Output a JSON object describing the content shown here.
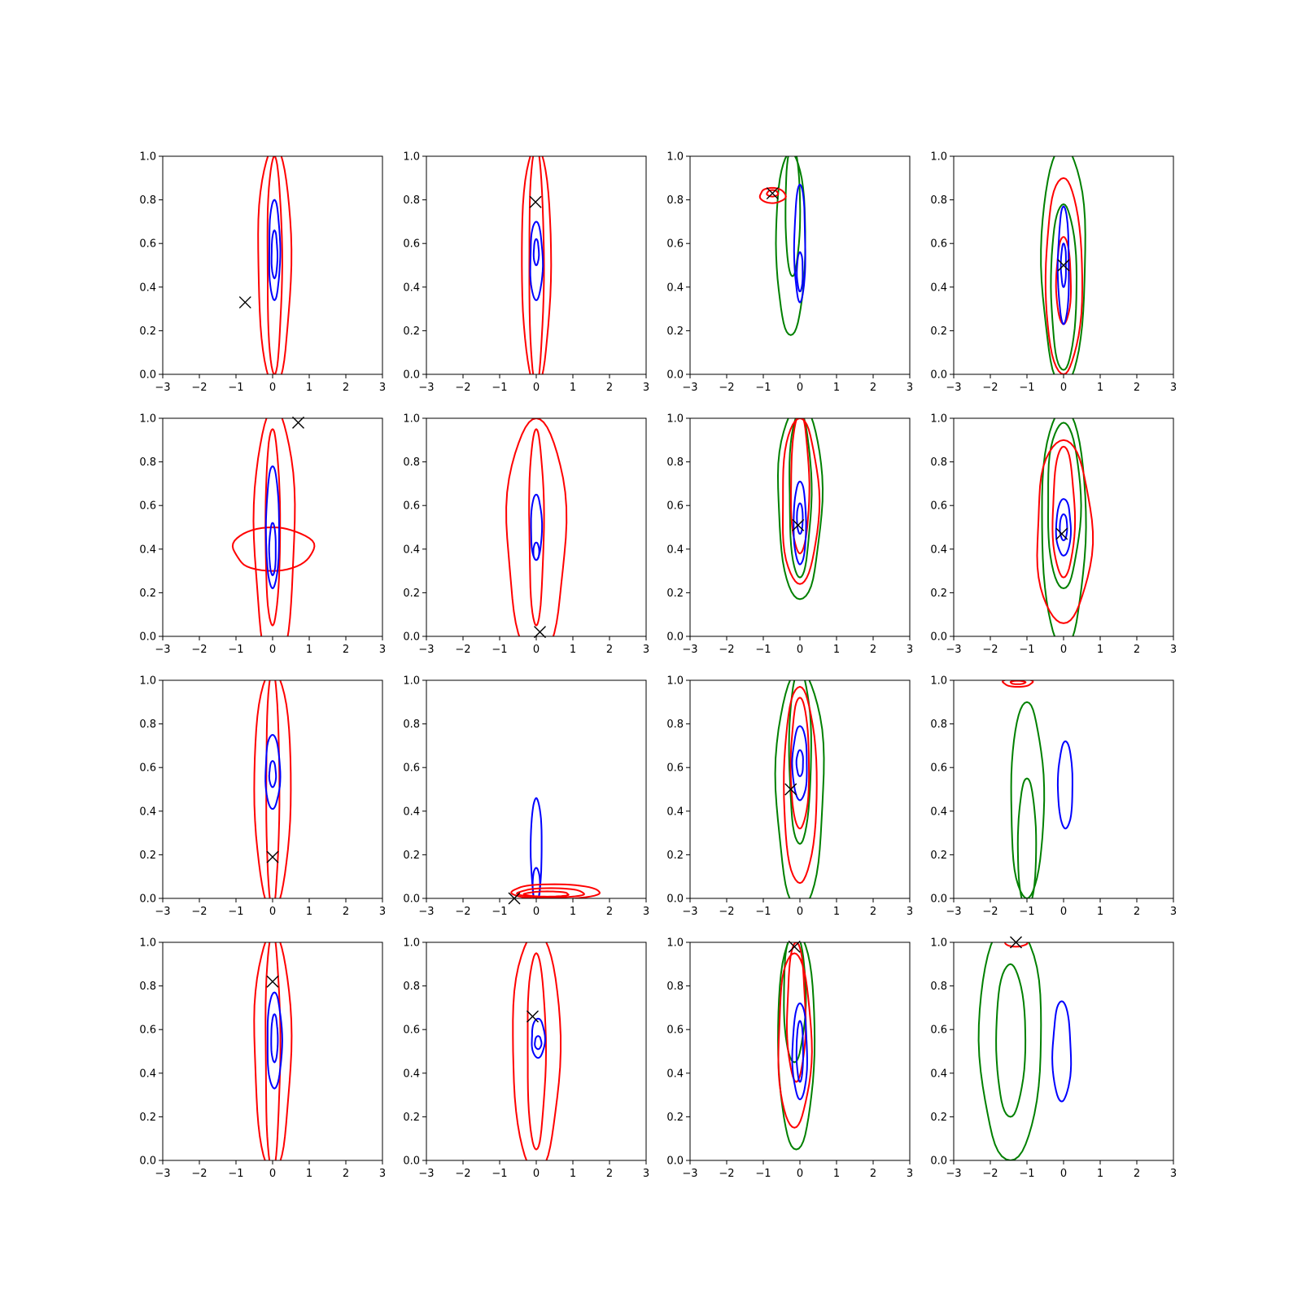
{
  "figure": {
    "rows": 4,
    "cols": 4,
    "background": "#ffffff"
  },
  "colors": {
    "red": "#ff0000",
    "blue": "#0000ff",
    "green": "#008000",
    "marker": "#000000"
  },
  "chart_data": {
    "type": "contour",
    "description_note": "",
    "xlim": [
      -3,
      3
    ],
    "ylim": [
      0,
      1
    ],
    "xticks": [
      -3,
      -2,
      -1,
      0,
      1,
      2,
      3
    ],
    "xtick_labels": [
      "−3",
      "−2",
      "−1",
      "0",
      "1",
      "2",
      "3"
    ],
    "yticks": [
      0,
      0.2,
      0.4,
      0.6,
      0.8,
      1.0
    ],
    "ytick_labels": [
      "0.0",
      "0.2",
      "0.4",
      "0.6",
      "0.8",
      "1.0"
    ],
    "marker_symbol": "x",
    "panels": [
      {
        "row": 0,
        "col": 0,
        "marker": [
          -0.75,
          0.33
        ],
        "contours": [
          {
            "color": "red",
            "cx": 0.05,
            "cy": 0.5,
            "hw": 0.45,
            "hh": 0.55
          },
          {
            "color": "red",
            "cx": 0.05,
            "cy": 0.5,
            "hw": 0.2,
            "hh": 0.5
          },
          {
            "color": "blue",
            "cx": 0.05,
            "cy": 0.57,
            "hw": 0.15,
            "hh": 0.23
          },
          {
            "color": "blue",
            "cx": 0.05,
            "cy": 0.55,
            "hw": 0.08,
            "hh": 0.11
          }
        ]
      },
      {
        "row": 0,
        "col": 1,
        "marker": [
          -0.02,
          0.79
        ],
        "contours": [
          {
            "color": "red",
            "cx": 0.0,
            "cy": 0.5,
            "hw": 0.4,
            "hh": 0.55
          },
          {
            "color": "red",
            "cx": 0.0,
            "cy": 0.5,
            "hw": 0.2,
            "hh": 0.55
          },
          {
            "color": "blue",
            "cx": 0.0,
            "cy": 0.52,
            "hw": 0.17,
            "hh": 0.18
          },
          {
            "color": "blue",
            "cx": 0.0,
            "cy": 0.56,
            "hw": 0.07,
            "hh": 0.06
          }
        ]
      },
      {
        "row": 0,
        "col": 2,
        "marker": [
          -0.75,
          0.83
        ],
        "contours": [
          {
            "color": "green",
            "cx": -0.25,
            "cy": 0.6,
            "hw": 0.4,
            "hh": 0.42
          },
          {
            "color": "green",
            "cx": -0.2,
            "cy": 0.75,
            "hw": 0.2,
            "hh": 0.3
          },
          {
            "color": "red",
            "cx": -0.75,
            "cy": 0.82,
            "hw": 0.35,
            "hh": 0.035
          },
          {
            "color": "red",
            "cx": -0.75,
            "cy": 0.83,
            "hw": 0.15,
            "hh": 0.015
          },
          {
            "color": "blue",
            "cx": 0.0,
            "cy": 0.6,
            "hw": 0.15,
            "hh": 0.27
          },
          {
            "color": "blue",
            "cx": 0.0,
            "cy": 0.47,
            "hw": 0.08,
            "hh": 0.09
          }
        ]
      },
      {
        "row": 0,
        "col": 3,
        "marker": [
          0.0,
          0.5
        ],
        "contours": [
          {
            "color": "green",
            "cx": 0.0,
            "cy": 0.5,
            "hw": 0.6,
            "hh": 0.55
          },
          {
            "color": "green",
            "cx": 0.0,
            "cy": 0.4,
            "hw": 0.35,
            "hh": 0.38
          },
          {
            "color": "red",
            "cx": 0.0,
            "cy": 0.45,
            "hw": 0.5,
            "hh": 0.45
          },
          {
            "color": "red",
            "cx": 0.0,
            "cy": 0.43,
            "hw": 0.2,
            "hh": 0.2
          },
          {
            "color": "blue",
            "cx": 0.0,
            "cy": 0.5,
            "hw": 0.15,
            "hh": 0.27
          },
          {
            "color": "blue",
            "cx": 0.0,
            "cy": 0.5,
            "hw": 0.07,
            "hh": 0.1
          }
        ]
      },
      {
        "row": 1,
        "col": 0,
        "marker": [
          0.7,
          0.98
        ],
        "contours": [
          {
            "color": "red",
            "cx": 0.05,
            "cy": 0.45,
            "hw": 0.55,
            "hh": 0.6
          },
          {
            "color": "red",
            "cx": 0.0,
            "cy": 0.4,
            "hw": 1.1,
            "hh": 0.1
          },
          {
            "color": "red",
            "cx": 0.0,
            "cy": 0.5,
            "hw": 0.2,
            "hh": 0.45
          },
          {
            "color": "blue",
            "cx": 0.0,
            "cy": 0.5,
            "hw": 0.18,
            "hh": 0.28
          },
          {
            "color": "blue",
            "cx": 0.0,
            "cy": 0.4,
            "hw": 0.09,
            "hh": 0.12
          }
        ]
      },
      {
        "row": 1,
        "col": 1,
        "marker": [
          0.1,
          0.02
        ],
        "contours": [
          {
            "color": "red",
            "cx": 0.0,
            "cy": 0.45,
            "hw": 0.8,
            "hh": 0.55
          },
          {
            "color": "red",
            "cx": 0.0,
            "cy": 0.5,
            "hw": 0.2,
            "hh": 0.45
          },
          {
            "color": "blue",
            "cx": 0.0,
            "cy": 0.5,
            "hw": 0.15,
            "hh": 0.15
          },
          {
            "color": "blue",
            "cx": 0.0,
            "cy": 0.39,
            "hw": 0.08,
            "hh": 0.04
          }
        ]
      },
      {
        "row": 1,
        "col": 2,
        "marker": [
          -0.05,
          0.51
        ],
        "contours": [
          {
            "color": "green",
            "cx": 0.0,
            "cy": 0.62,
            "hw": 0.6,
            "hh": 0.45
          },
          {
            "color": "green",
            "cx": 0.0,
            "cy": 0.65,
            "hw": 0.3,
            "hh": 0.38
          },
          {
            "color": "red",
            "cx": 0.0,
            "cy": 0.62,
            "hw": 0.5,
            "hh": 0.38
          },
          {
            "color": "red",
            "cx": 0.0,
            "cy": 0.7,
            "hw": 0.25,
            "hh": 0.32
          },
          {
            "color": "blue",
            "cx": 0.0,
            "cy": 0.52,
            "hw": 0.17,
            "hh": 0.19
          },
          {
            "color": "blue",
            "cx": 0.0,
            "cy": 0.54,
            "hw": 0.08,
            "hh": 0.07
          }
        ]
      },
      {
        "row": 1,
        "col": 3,
        "marker": [
          -0.05,
          0.47
        ],
        "contours": [
          {
            "color": "green",
            "cx": 0.0,
            "cy": 0.5,
            "hw": 0.6,
            "hh": 0.55
          },
          {
            "color": "green",
            "cx": 0.0,
            "cy": 0.6,
            "hw": 0.45,
            "hh": 0.38
          },
          {
            "color": "red",
            "cx": 0.0,
            "cy": 0.48,
            "hw": 0.75,
            "hh": 0.42
          },
          {
            "color": "red",
            "cx": 0.0,
            "cy": 0.57,
            "hw": 0.3,
            "hh": 0.3
          },
          {
            "color": "blue",
            "cx": 0.0,
            "cy": 0.5,
            "hw": 0.2,
            "hh": 0.13
          },
          {
            "color": "blue",
            "cx": 0.0,
            "cy": 0.5,
            "hw": 0.1,
            "hh": 0.06
          }
        ]
      },
      {
        "row": 2,
        "col": 0,
        "marker": [
          0.0,
          0.19
        ],
        "contours": [
          {
            "color": "red",
            "cx": 0.0,
            "cy": 0.5,
            "hw": 0.5,
            "hh": 0.55
          },
          {
            "color": "red",
            "cx": 0.0,
            "cy": 0.5,
            "hw": 0.18,
            "hh": 0.55
          },
          {
            "color": "blue",
            "cx": 0.0,
            "cy": 0.58,
            "hw": 0.2,
            "hh": 0.17
          },
          {
            "color": "blue",
            "cx": 0.0,
            "cy": 0.57,
            "hw": 0.09,
            "hh": 0.06
          }
        ]
      },
      {
        "row": 2,
        "col": 1,
        "marker": [
          -0.6,
          0.0
        ],
        "contours": [
          {
            "color": "blue",
            "cx": 0.0,
            "cy": 0.22,
            "hw": 0.15,
            "hh": 0.24
          },
          {
            "color": "blue",
            "cx": 0.0,
            "cy": 0.06,
            "hw": 0.1,
            "hh": 0.08
          },
          {
            "color": "red",
            "cx": 0.5,
            "cy": 0.03,
            "hw": 1.2,
            "hh": 0.035
          },
          {
            "color": "red",
            "cx": 0.4,
            "cy": 0.025,
            "hw": 0.9,
            "hh": 0.022
          },
          {
            "color": "red",
            "cx": 0.3,
            "cy": 0.02,
            "hw": 0.6,
            "hh": 0.012
          }
        ]
      },
      {
        "row": 2,
        "col": 2,
        "marker": [
          -0.25,
          0.5
        ],
        "contours": [
          {
            "color": "green",
            "cx": 0.0,
            "cy": 0.5,
            "hw": 0.65,
            "hh": 0.55
          },
          {
            "color": "green",
            "cx": 0.0,
            "cy": 0.65,
            "hw": 0.3,
            "hh": 0.4
          },
          {
            "color": "red",
            "cx": 0.0,
            "cy": 0.52,
            "hw": 0.45,
            "hh": 0.45
          },
          {
            "color": "red",
            "cx": 0.0,
            "cy": 0.62,
            "hw": 0.25,
            "hh": 0.3
          },
          {
            "color": "blue",
            "cx": 0.0,
            "cy": 0.62,
            "hw": 0.2,
            "hh": 0.17
          },
          {
            "color": "blue",
            "cx": 0.0,
            "cy": 0.62,
            "hw": 0.09,
            "hh": 0.06
          }
        ]
      },
      {
        "row": 2,
        "col": 3,
        "marker": null,
        "contours": [
          {
            "color": "red",
            "cx": -1.25,
            "cy": 0.99,
            "hw": 0.4,
            "hh": 0.02
          },
          {
            "color": "red",
            "cx": -1.25,
            "cy": 0.99,
            "hw": 0.2,
            "hh": 0.008
          },
          {
            "color": "green",
            "cx": -1.0,
            "cy": 0.45,
            "hw": 0.45,
            "hh": 0.45
          },
          {
            "color": "green",
            "cx": -1.0,
            "cy": 0.25,
            "hw": 0.25,
            "hh": 0.3
          },
          {
            "color": "blue",
            "cx": 0.05,
            "cy": 0.52,
            "hw": 0.2,
            "hh": 0.2
          }
        ]
      },
      {
        "row": 3,
        "col": 0,
        "marker": [
          0.0,
          0.82
        ],
        "contours": [
          {
            "color": "red",
            "cx": 0.0,
            "cy": 0.5,
            "hw": 0.5,
            "hh": 0.55
          },
          {
            "color": "red",
            "cx": 0.0,
            "cy": 0.5,
            "hw": 0.2,
            "hh": 0.55
          },
          {
            "color": "blue",
            "cx": 0.05,
            "cy": 0.55,
            "hw": 0.2,
            "hh": 0.22
          },
          {
            "color": "blue",
            "cx": 0.05,
            "cy": 0.56,
            "hw": 0.09,
            "hh": 0.11
          }
        ]
      },
      {
        "row": 3,
        "col": 1,
        "marker": [
          -0.1,
          0.66
        ],
        "contours": [
          {
            "color": "red",
            "cx": 0.0,
            "cy": 0.5,
            "hw": 0.65,
            "hh": 0.55
          },
          {
            "color": "red",
            "cx": 0.0,
            "cy": 0.5,
            "hw": 0.25,
            "hh": 0.45
          },
          {
            "color": "blue",
            "cx": 0.05,
            "cy": 0.56,
            "hw": 0.18,
            "hh": 0.09
          },
          {
            "color": "blue",
            "cx": 0.05,
            "cy": 0.54,
            "hw": 0.09,
            "hh": 0.03
          }
        ]
      },
      {
        "row": 3,
        "col": 2,
        "marker": [
          -0.15,
          0.98
        ],
        "contours": [
          {
            "color": "green",
            "cx": -0.1,
            "cy": 0.55,
            "hw": 0.5,
            "hh": 0.5
          },
          {
            "color": "green",
            "cx": -0.15,
            "cy": 0.75,
            "hw": 0.3,
            "hh": 0.3
          },
          {
            "color": "red",
            "cx": -0.15,
            "cy": 0.55,
            "hw": 0.45,
            "hh": 0.4
          },
          {
            "color": "red",
            "cx": -0.1,
            "cy": 0.68,
            "hw": 0.25,
            "hh": 0.32
          },
          {
            "color": "blue",
            "cx": 0.0,
            "cy": 0.5,
            "hw": 0.2,
            "hh": 0.22
          },
          {
            "color": "blue",
            "cx": 0.0,
            "cy": 0.5,
            "hw": 0.09,
            "hh": 0.14
          }
        ]
      },
      {
        "row": 3,
        "col": 3,
        "marker": [
          -1.3,
          1.0
        ],
        "contours": [
          {
            "color": "green",
            "cx": -1.45,
            "cy": 0.55,
            "hw": 0.85,
            "hh": 0.55
          },
          {
            "color": "green",
            "cx": -1.45,
            "cy": 0.55,
            "hw": 0.4,
            "hh": 0.35
          },
          {
            "color": "red",
            "cx": -1.3,
            "cy": 1.0,
            "hw": 0.3,
            "hh": 0.02
          },
          {
            "color": "blue",
            "cx": -0.05,
            "cy": 0.5,
            "hw": 0.25,
            "hh": 0.23
          }
        ]
      }
    ]
  }
}
